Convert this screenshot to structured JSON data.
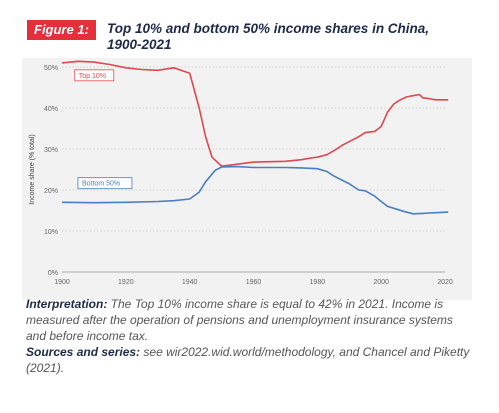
{
  "figure": {
    "badge": "Figure 1:",
    "title_line1": "Top 10% and bottom 50% income shares in China,",
    "title_line2": "1900-2021"
  },
  "interpretation": {
    "label": "Interpretation:",
    "text": " The Top 10% income share is equal to 42% in 2021. Income is measured after the operation of pensions and unemployment insurance systems and before income tax."
  },
  "sources": {
    "label": "Sources and series:",
    "text": " see wir2022.wid.world/methodology, and Chancel and Piketty (2021)."
  },
  "colors": {
    "top10": "#e0474f",
    "bottom50": "#4a7ec0",
    "grid": "#c8c8c8"
  },
  "chart_data": {
    "type": "line",
    "ylabel": "Income share (% total)",
    "xlim": [
      1900,
      2020
    ],
    "ylim": [
      0,
      50
    ],
    "x_ticks": [
      "1900",
      "1920",
      "1940",
      "1960",
      "1980",
      "2000",
      "2020"
    ],
    "y_ticks": [
      "0%",
      "10%",
      "20%",
      "30%",
      "40%",
      "50%"
    ],
    "series": [
      {
        "name": "Top 10%",
        "x": [
          1900,
          1905,
          1910,
          1915,
          1920,
          1925,
          1930,
          1935,
          1940,
          1943,
          1945,
          1947,
          1950,
          1955,
          1960,
          1965,
          1970,
          1975,
          1978,
          1980,
          1983,
          1985,
          1988,
          1990,
          1993,
          1995,
          1998,
          2000,
          2002,
          2004,
          2006,
          2008,
          2010,
          2012,
          2013,
          2015,
          2017,
          2019,
          2021
        ],
        "values": [
          51,
          51.4,
          51.2,
          50.6,
          49.8,
          49.4,
          49.2,
          49.8,
          48.5,
          40,
          33,
          28,
          25.8,
          26.3,
          26.8,
          26.9,
          27,
          27.4,
          27.8,
          28,
          28.6,
          29.5,
          31,
          31.8,
          33,
          34,
          34.3,
          35.5,
          39,
          41,
          42,
          42.7,
          43,
          43.3,
          42.5,
          42.3,
          42,
          42,
          42
        ]
      },
      {
        "name": "Bottom 50%",
        "x": [
          1900,
          1910,
          1920,
          1930,
          1935,
          1940,
          1943,
          1945,
          1948,
          1950,
          1955,
          1960,
          1965,
          1970,
          1975,
          1980,
          1983,
          1985,
          1988,
          1990,
          1993,
          1995,
          1998,
          2000,
          2002,
          2005,
          2007,
          2010,
          2013,
          2015,
          2018,
          2021
        ],
        "values": [
          17,
          16.9,
          17,
          17.2,
          17.4,
          17.8,
          19.5,
          22,
          24.8,
          25.6,
          25.7,
          25.5,
          25.5,
          25.5,
          25.4,
          25.2,
          24.5,
          23.5,
          22.3,
          21.5,
          20,
          19.8,
          18.5,
          17.2,
          16,
          15.3,
          14.8,
          14.2,
          14.3,
          14.4,
          14.5,
          14.6
        ]
      }
    ]
  }
}
